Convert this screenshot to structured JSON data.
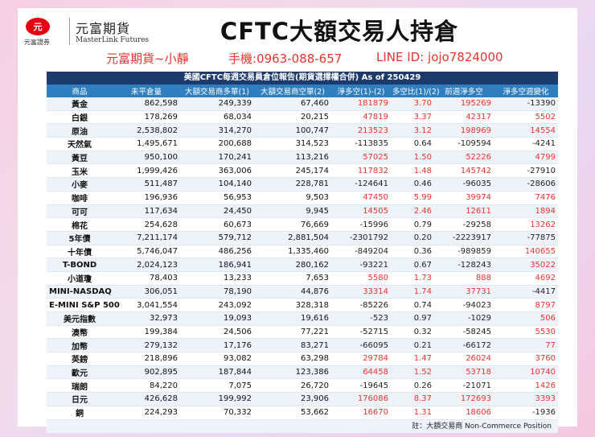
{
  "brand": {
    "mark": "元",
    "name_cn": "元富期貨",
    "name_en": "MasterLink Futures",
    "sub": "元富證券"
  },
  "header": {
    "title": "CFTC大額交易人持倉",
    "contact_name": "元富期貨~小靜",
    "phone": "手機:0963-088-657",
    "line": "LINE ID: jojo7824000"
  },
  "table": {
    "caption": "美國CFTC每週交易員倉位報告(期貨選擇權合併) As of  250429",
    "columns": [
      "商品",
      "未平倉量",
      "大額交易商多單(1)",
      "大額交易商空單(2)",
      "淨多空(1)-(2)",
      "多空比(1)/(2)",
      "前週淨多空",
      "淨多空週變化"
    ],
    "rows": [
      [
        "黃金",
        "862,598",
        "249,339",
        "67,460",
        "181879",
        "3.70",
        "195269",
        "-13390"
      ],
      [
        "白銀",
        "178,269",
        "68,034",
        "20,215",
        "47819",
        "3.37",
        "42317",
        "5502"
      ],
      [
        "原油",
        "2,538,802",
        "314,270",
        "100,747",
        "213523",
        "3.12",
        "198969",
        "14554"
      ],
      [
        "天然氣",
        "1,495,671",
        "200,688",
        "314,523",
        "-113835",
        "0.64",
        "-109594",
        "-4241"
      ],
      [
        "黃豆",
        "950,100",
        "170,241",
        "113,216",
        "57025",
        "1.50",
        "52226",
        "4799"
      ],
      [
        "玉米",
        "1,999,426",
        "363,006",
        "245,174",
        "117832",
        "1.48",
        "145742",
        "-27910"
      ],
      [
        "小麥",
        "511,487",
        "104,140",
        "228,781",
        "-124641",
        "0.46",
        "-96035",
        "-28606"
      ],
      [
        "咖啡",
        "196,936",
        "56,953",
        "9,503",
        "47450",
        "5.99",
        "39974",
        "7476"
      ],
      [
        "可可",
        "117,634",
        "24,450",
        "9,945",
        "14505",
        "2.46",
        "12611",
        "1894"
      ],
      [
        "棉花",
        "254,628",
        "60,673",
        "76,669",
        "-15996",
        "0.79",
        "-29258",
        "13262"
      ],
      [
        "5年債",
        "7,211,174",
        "579,712",
        "2,881,504",
        "-2301792",
        "0.20",
        "-2223917",
        "-77875"
      ],
      [
        "十年債",
        "5,746,047",
        "486,256",
        "1,335,460",
        "-849204",
        "0.36",
        "-989859",
        "140655"
      ],
      [
        "T-BOND",
        "2,024,123",
        "186,941",
        "280,162",
        "-93221",
        "0.67",
        "-128243",
        "35022"
      ],
      [
        "小道瓊",
        "78,403",
        "13,233",
        "7,653",
        "5580",
        "1.73",
        "888",
        "4692"
      ],
      [
        "MINI-NASDAQ",
        "306,051",
        "78,190",
        "44,876",
        "33314",
        "1.74",
        "37731",
        "-4417"
      ],
      [
        "E-MINI S&P 500",
        "3,041,554",
        "243,092",
        "328,318",
        "-85226",
        "0.74",
        "-94023",
        "8797"
      ],
      [
        "美元指數",
        "32,973",
        "19,093",
        "19,616",
        "-523",
        "0.97",
        "-1029",
        "506"
      ],
      [
        "澳幣",
        "199,384",
        "24,506",
        "77,221",
        "-52715",
        "0.32",
        "-58245",
        "5530"
      ],
      [
        "加幣",
        "279,132",
        "17,176",
        "83,271",
        "-66095",
        "0.21",
        "-66172",
        "77"
      ],
      [
        "英鎊",
        "218,896",
        "93,082",
        "63,298",
        "29784",
        "1.47",
        "26024",
        "3760"
      ],
      [
        "歐元",
        "902,895",
        "187,844",
        "123,386",
        "64458",
        "1.52",
        "53718",
        "10740"
      ],
      [
        "瑞朗",
        "84,220",
        "7,075",
        "26,720",
        "-19645",
        "0.26",
        "-21071",
        "1426"
      ],
      [
        "日元",
        "426,628",
        "199,992",
        "23,906",
        "176086",
        "8.37",
        "172693",
        "3393"
      ],
      [
        "銅",
        "224,293",
        "70,332",
        "53,662",
        "16670",
        "1.31",
        "18606",
        "-1936"
      ]
    ],
    "footnote": "註：大額交易商 Non-Commerce Position"
  },
  "colors": {
    "positive": "#e8352f",
    "negative": "#222222",
    "header_bg": "#2f7fc0",
    "caption_bg": "#1d3a6c"
  }
}
